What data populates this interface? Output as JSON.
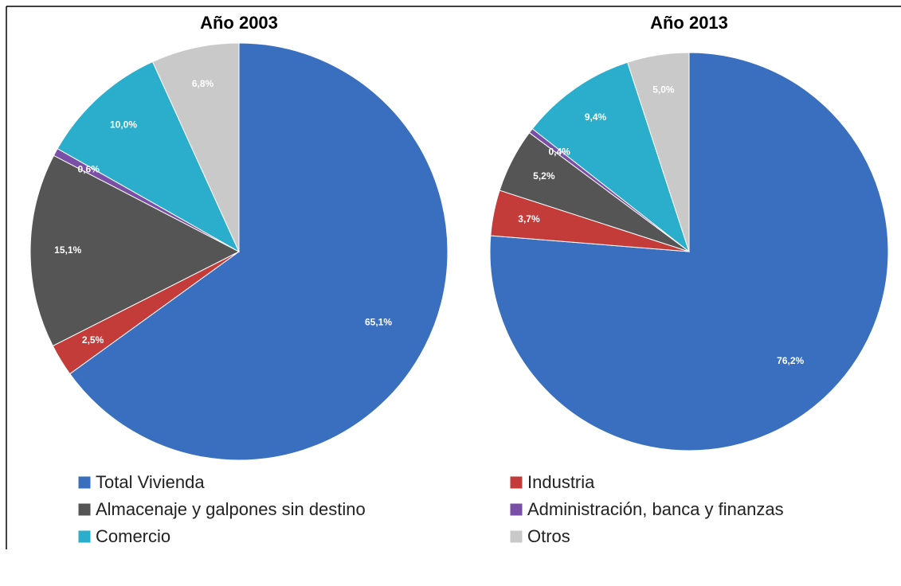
{
  "chart_data": [
    {
      "type": "pie",
      "title": "Año 2003",
      "values": [
        65.1,
        2.5,
        15.1,
        0.6,
        10.0,
        6.8
      ],
      "value_labels": [
        "65,1%",
        "2,5%",
        "15,1%",
        "0,6%",
        "10,0%",
        "6,8%"
      ]
    },
    {
      "type": "pie",
      "title": "Año 2013",
      "values": [
        76.2,
        3.7,
        5.2,
        0.4,
        9.4,
        5.0
      ],
      "value_labels": [
        "76,2%",
        "3,7%",
        "5,2%",
        "0,4%",
        "9,4%",
        "5,0%"
      ]
    }
  ],
  "legend": {
    "labels": [
      "Total Vivienda",
      "Industria",
      "Almacenaje y galpones sin destino",
      "Administración, banca y finanzas",
      "Comercio",
      "Otros"
    ],
    "colors": [
      "#3a6fc0",
      "#c43c3a",
      "#555555",
      "#7a4fa8",
      "#2aaecb",
      "#c9c9c9"
    ]
  }
}
